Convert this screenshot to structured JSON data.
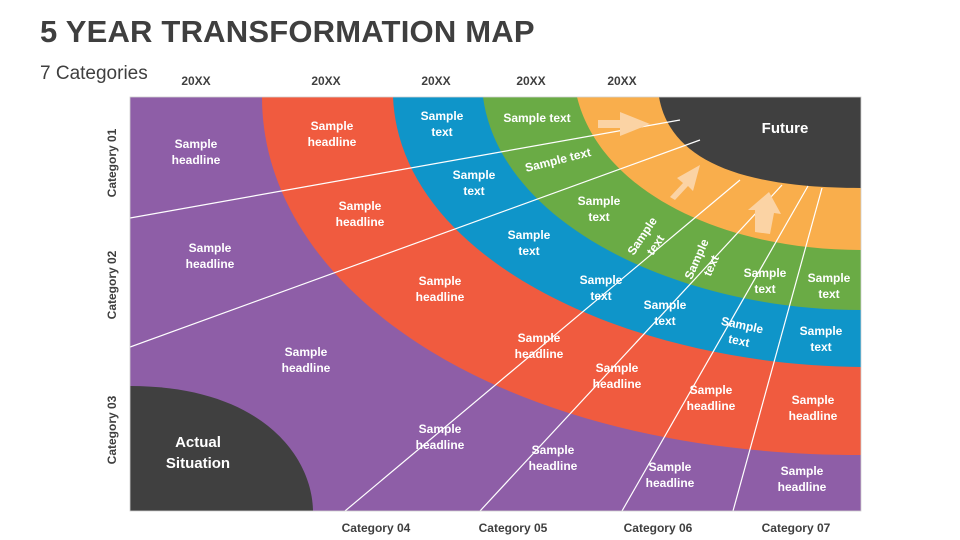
{
  "title": "5 YEAR TRANSFORMATION MAP",
  "subtitle": "7 Categories",
  "years": [
    "20XX",
    "20XX",
    "20XX",
    "20XX",
    "20XX"
  ],
  "rows": [
    "Category 01",
    "Category 02",
    "Category 03"
  ],
  "columns": [
    "Category 04",
    "Category 05",
    "Category 06",
    "Category 07"
  ],
  "start": "Actual Situation",
  "start_lines": [
    "Actual",
    "Situation"
  ],
  "end": "Future",
  "headline": [
    "Sample",
    "headline"
  ],
  "text": [
    "Sample",
    "text"
  ],
  "text_inline": "Sample text",
  "colors": {
    "purple": "#8e5ea7",
    "red": "#f05b3f",
    "blue": "#0f95c9",
    "green": "#6aab45",
    "orange": "#f9ae4c",
    "dark": "#404040",
    "heading": "#3f3f3f"
  }
}
